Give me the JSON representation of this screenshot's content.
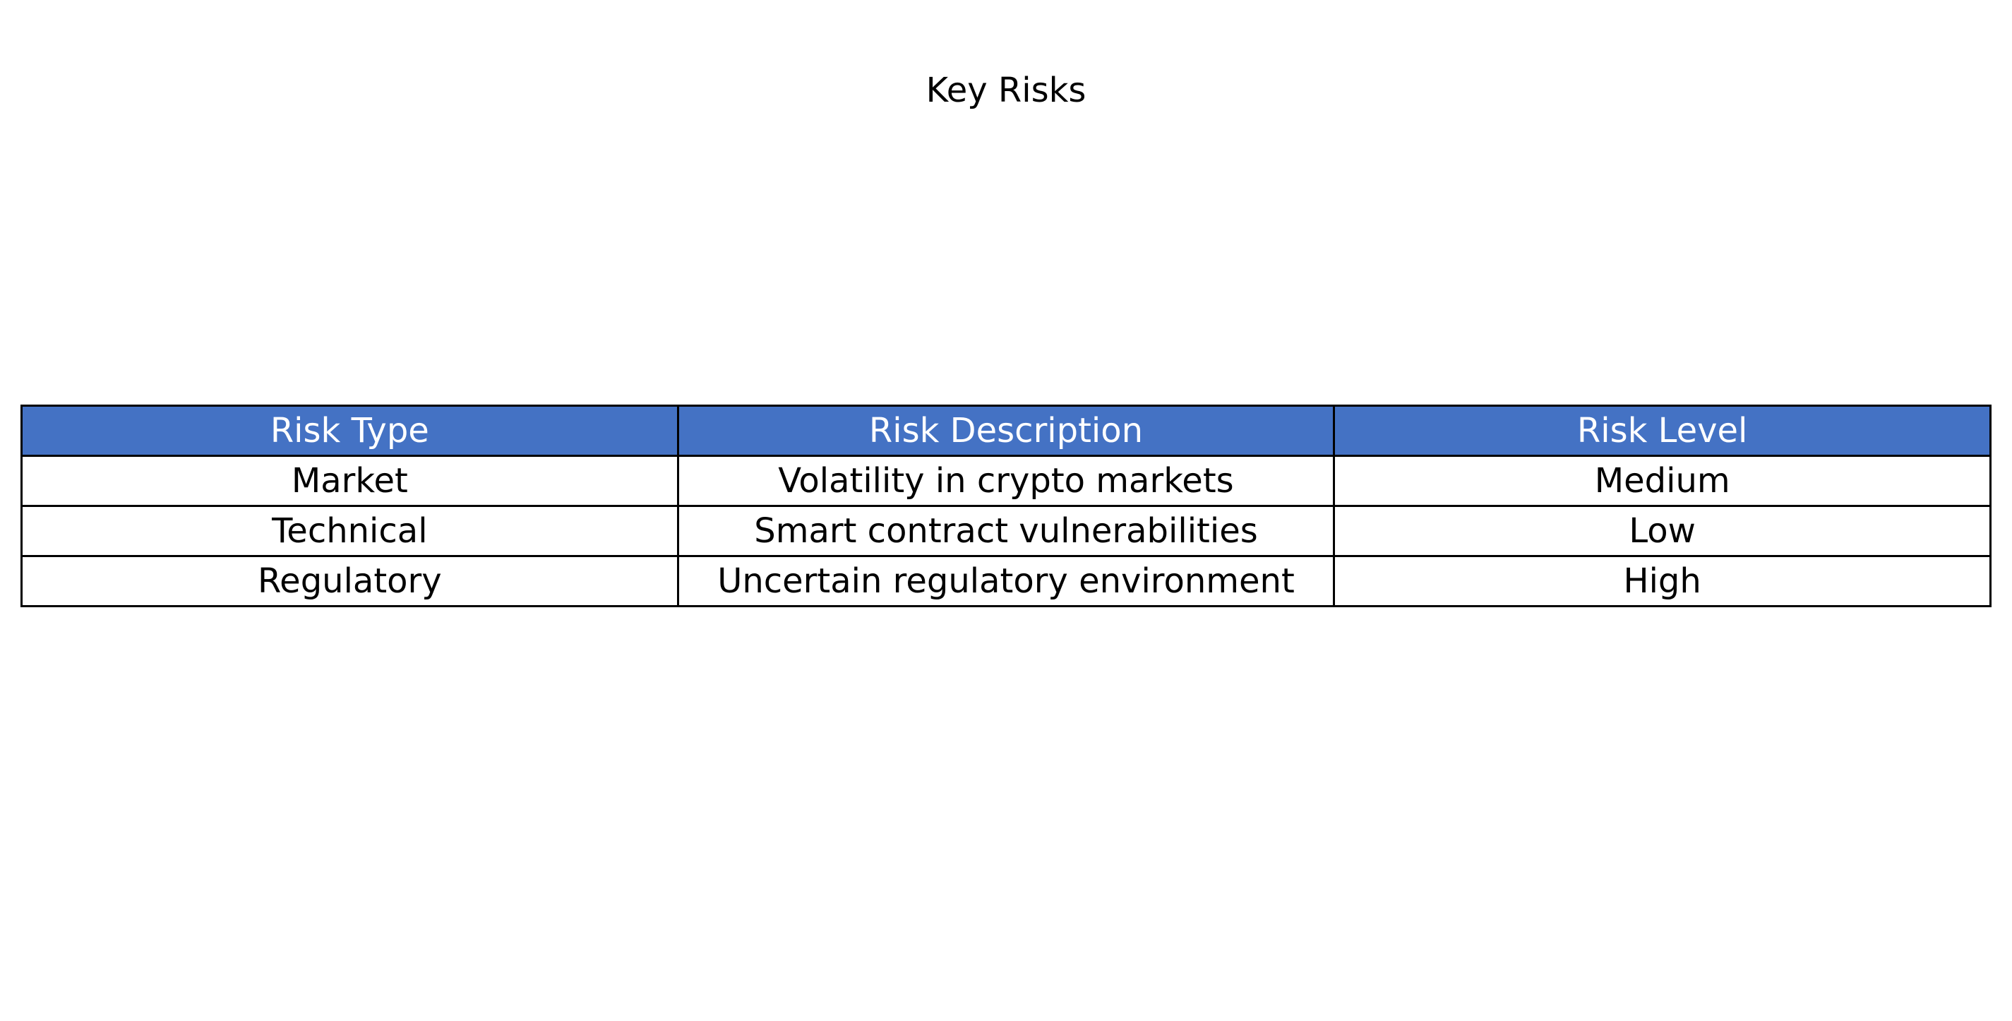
{
  "chart_data": {
    "type": "table",
    "title": "Key Risks",
    "header_color": "#4472c4",
    "header_text_color": "#ffffff",
    "columns": [
      "Risk Type",
      "Risk Description",
      "Risk Level"
    ],
    "rows": [
      [
        "Market",
        "Volatility in crypto markets",
        "Medium"
      ],
      [
        "Technical",
        "Smart contract vulnerabilities",
        "Low"
      ],
      [
        "Regulatory",
        "Uncertain regulatory environment",
        "High"
      ]
    ]
  }
}
